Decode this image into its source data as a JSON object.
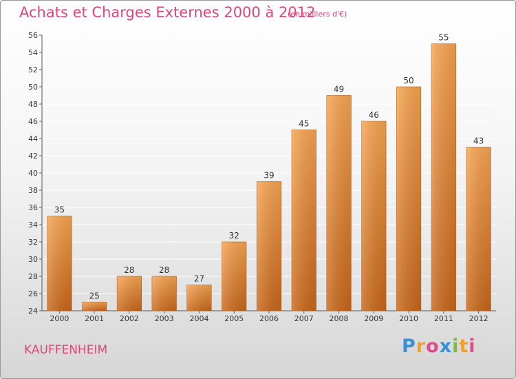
{
  "title": "Achats et Charges Externes 2000 à 2012",
  "subtitle": "(en milliers d'€)",
  "commune": "KAUFFENHEIM",
  "logo": {
    "text": "Proxiti",
    "parts": [
      "P",
      "r",
      "o",
      "x",
      "i",
      "t",
      "i"
    ]
  },
  "colors": {
    "bar_top": "#f7a451",
    "bar_bottom": "#c8661a",
    "title": "#e0467a",
    "grid": "#ffffff"
  },
  "chart_data": {
    "type": "bar",
    "title": "Achats et Charges Externes 2000 à 2012",
    "subtitle": "(en milliers d'€)",
    "categories": [
      "2000",
      "2001",
      "2002",
      "2003",
      "2004",
      "2005",
      "2006",
      "2007",
      "2008",
      "2009",
      "2010",
      "2011",
      "2012"
    ],
    "values": [
      35,
      25,
      28,
      28,
      27,
      32,
      39,
      45,
      49,
      46,
      50,
      55,
      43
    ],
    "ylim": [
      24,
      56
    ],
    "yticks": [
      24,
      26,
      28,
      30,
      32,
      34,
      36,
      38,
      40,
      42,
      44,
      46,
      48,
      50,
      52,
      54,
      56
    ],
    "grid": true,
    "legend": false
  }
}
